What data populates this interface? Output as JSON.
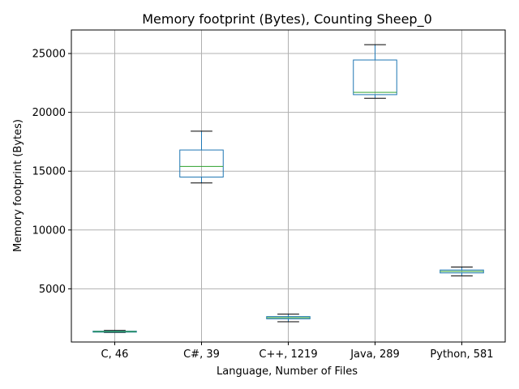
{
  "chart_data": {
    "type": "box",
    "title": "Memory footprint (Bytes), Counting Sheep_0",
    "xlabel": "Language, Number of Files",
    "ylabel": "Memory footprint (Bytes)",
    "categories": [
      "C, 46",
      "C#, 39",
      "C++, 1219",
      "Java, 289",
      "Python, 581"
    ],
    "boxes": [
      {
        "whisker_low": 1290,
        "q1": 1320,
        "median": 1370,
        "q3": 1400,
        "whisker_high": 1460
      },
      {
        "whisker_low": 14000,
        "q1": 14500,
        "median": 15400,
        "q3": 16800,
        "whisker_high": 18400
      },
      {
        "whisker_low": 2200,
        "q1": 2450,
        "median": 2550,
        "q3": 2640,
        "whisker_high": 2850
      },
      {
        "whisker_low": 21200,
        "q1": 21500,
        "median": 21700,
        "q3": 24450,
        "whisker_high": 25750
      },
      {
        "whisker_low": 6100,
        "q1": 6350,
        "median": 6480,
        "q3": 6600,
        "whisker_high": 6850
      }
    ],
    "yticks": [
      5000,
      10000,
      15000,
      20000,
      25000
    ],
    "ylim": [
      480,
      27000
    ],
    "grid": true,
    "colors": {
      "box": "#1f77b4",
      "median": "#2ca02c",
      "whisker_cap": "#000000",
      "grid": "#b0b0b0"
    }
  }
}
